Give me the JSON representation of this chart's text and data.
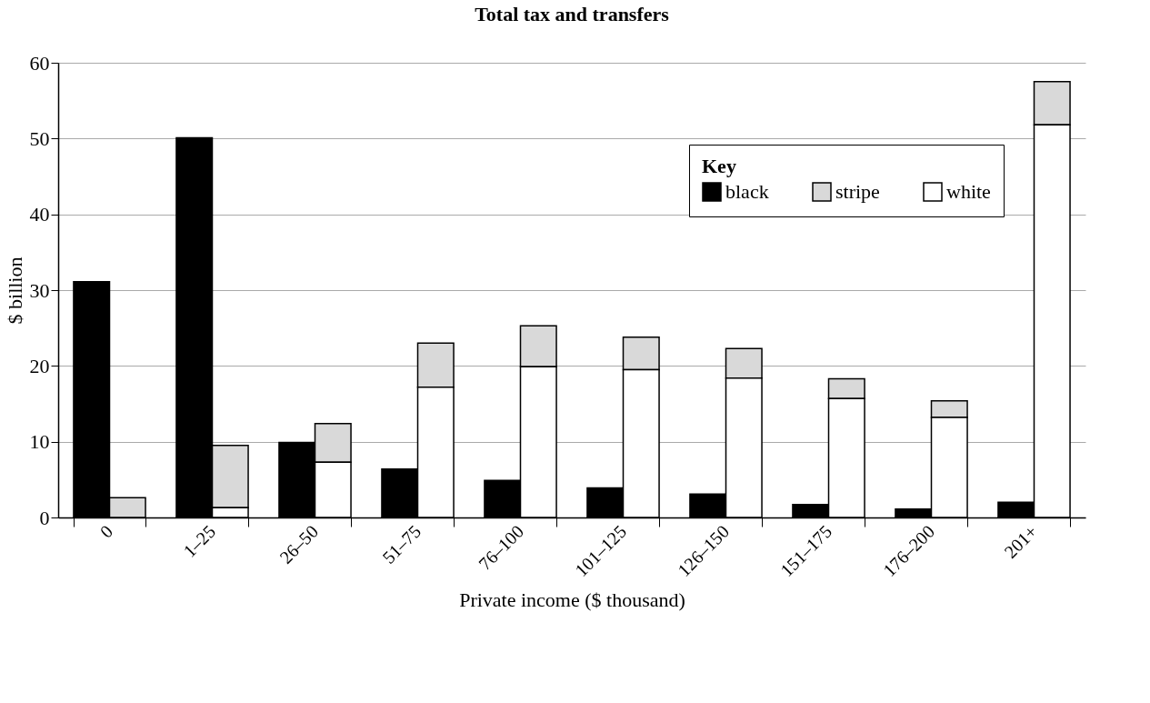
{
  "chart_data": {
    "type": "bar",
    "title": "Total tax and transfers",
    "xlabel": "Private income ($ thousand)",
    "ylabel": "$ billion",
    "legend_title": "Key",
    "categories": [
      "0",
      "1–25",
      "26–50",
      "51–75",
      "76–100",
      "101–125",
      "126–150",
      "151–175",
      "176–200",
      "201+"
    ],
    "series": [
      {
        "name": "black",
        "color": "#000000",
        "values": [
          31.1,
          50.1,
          9.9,
          6.4,
          4.9,
          3.9,
          3.1,
          1.7,
          1.1,
          2.0
        ]
      },
      {
        "name": "stripe",
        "color": "#d9d9d9",
        "base": [
          0,
          1.3,
          7.3,
          17.2,
          19.9,
          19.5,
          18.4,
          15.7,
          13.2,
          51.8
        ],
        "values": [
          2.6,
          8.2,
          5.1,
          5.8,
          5.4,
          4.3,
          3.9,
          2.6,
          2.2,
          5.7
        ]
      },
      {
        "name": "white",
        "color": "#ffffff",
        "values": [
          null,
          1.3,
          7.3,
          17.2,
          19.9,
          19.5,
          18.4,
          15.7,
          13.2,
          51.8
        ]
      }
    ],
    "ylim": [
      0,
      60
    ],
    "yticks": [
      0,
      10,
      20,
      30,
      40,
      50,
      60
    ],
    "grid": "y",
    "legend": "top right"
  }
}
